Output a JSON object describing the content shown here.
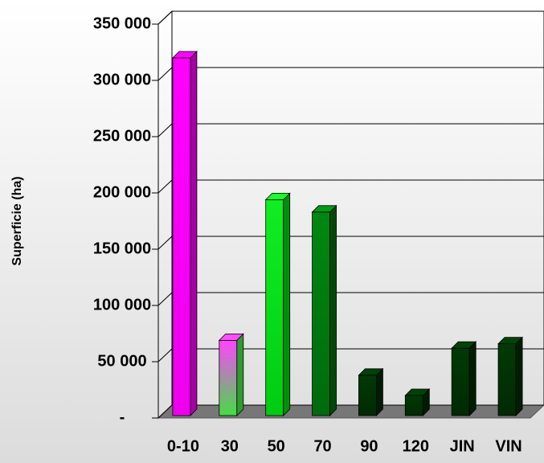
{
  "chart_data": {
    "type": "bar3d",
    "y_label": "Superficie (ha)",
    "categories": [
      "0-10",
      "30",
      "50",
      "70",
      "90",
      "120",
      "JIN",
      "VIN"
    ],
    "values": [
      320000,
      69000,
      194000,
      183000,
      38000,
      20000,
      62000,
      66000
    ],
    "colors": [
      "#ff00ff",
      "#ff44ff",
      "#11ee22",
      "#008811",
      "#003a05",
      "#003a05",
      "#003a05",
      "#003a05"
    ],
    "colors_bottom": [
      "#ee00ee",
      "#44dd44",
      "#00cc11",
      "#006a0c",
      "#002a03",
      "#002a03",
      "#002a03",
      "#002a03"
    ],
    "ylim": [
      0,
      350000
    ],
    "yticks": [
      {
        "value": 0,
        "label": "-"
      },
      {
        "value": 50000,
        "label": "50 000"
      },
      {
        "value": 100000,
        "label": "100 000"
      },
      {
        "value": 150000,
        "label": "150 000"
      },
      {
        "value": 200000,
        "label": "200 000"
      },
      {
        "value": 250000,
        "label": "250 000"
      },
      {
        "value": 300000,
        "label": "300 000"
      },
      {
        "value": 350000,
        "label": "350 000"
      }
    ],
    "grid": true
  }
}
